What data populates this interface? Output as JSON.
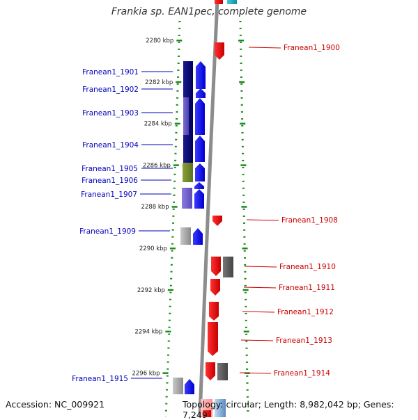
{
  "title": "Frankia sp. EAN1pec, complete genome",
  "footer": {
    "accession_label": "Accession: NC_009921",
    "summary_label": "Topology: circular; Length: 8,982,042 bp; Genes: 7,249"
  },
  "colors": {
    "forward_label": "#0000bb",
    "reverse_label": "#cc0000",
    "tick": "#1a8a1a",
    "backbone": "#8c8c8c"
  },
  "scale_ticks": [
    {
      "label": "2280 kbp",
      "kbp": 2280
    },
    {
      "label": "2282 kbp",
      "kbp": 2282
    },
    {
      "label": "2284 kbp",
      "kbp": 2284
    },
    {
      "label": "2286 kbp",
      "kbp": 2286
    },
    {
      "label": "2288 kbp",
      "kbp": 2288
    },
    {
      "label": "2290 kbp",
      "kbp": 2290
    },
    {
      "label": "2292 kbp",
      "kbp": 2292
    },
    {
      "label": "2294 kbp",
      "kbp": 2294
    },
    {
      "label": "2296 kbp",
      "kbp": 2296
    }
  ],
  "genes": [
    {
      "label": "Franean1_1900",
      "strand": "reverse"
    },
    {
      "label": "Franean1_1901",
      "strand": "forward"
    },
    {
      "label": "Franean1_1902",
      "strand": "forward"
    },
    {
      "label": "Franean1_1903",
      "strand": "forward"
    },
    {
      "label": "Franean1_1904",
      "strand": "forward"
    },
    {
      "label": "Franean1_1905",
      "strand": "forward"
    },
    {
      "label": "Franean1_1906",
      "strand": "forward"
    },
    {
      "label": "Franean1_1907",
      "strand": "forward"
    },
    {
      "label": "Franean1_1908",
      "strand": "reverse"
    },
    {
      "label": "Franean1_1909",
      "strand": "forward"
    },
    {
      "label": "Franean1_1910",
      "strand": "reverse"
    },
    {
      "label": "Franean1_1911",
      "strand": "reverse"
    },
    {
      "label": "Franean1_1912",
      "strand": "reverse"
    },
    {
      "label": "Franean1_1913",
      "strand": "reverse"
    },
    {
      "label": "Franean1_1914",
      "strand": "reverse"
    },
    {
      "label": "Franean1_1915",
      "strand": "forward"
    }
  ]
}
